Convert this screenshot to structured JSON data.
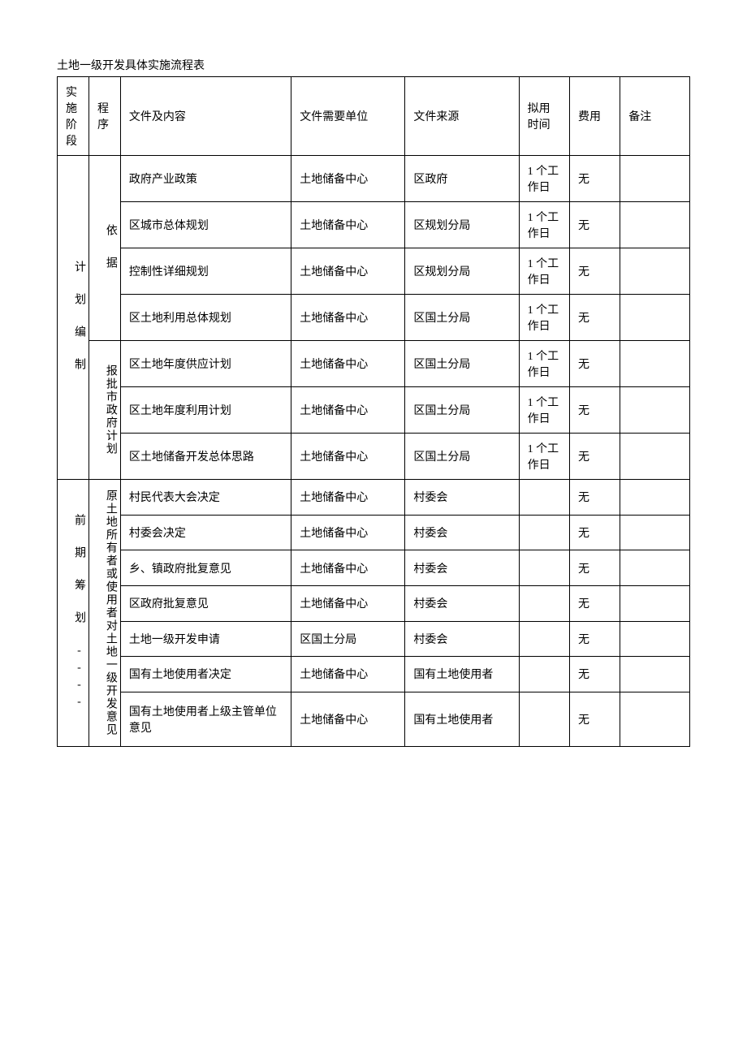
{
  "title": "土地一级开发具体实施流程表",
  "headers": {
    "stage": "实施阶段",
    "procedure": "程序",
    "doc": "文件及内容",
    "unit": "文件需要单位",
    "source": "文件来源",
    "time": "拟用时间",
    "fee": "费用",
    "note": "备注"
  },
  "stage1": {
    "label": "计　划　编　制",
    "proc1": "依　据",
    "proc2": "报批市政府计划",
    "rows": [
      {
        "doc": "政府产业政策",
        "unit": "土地储备中心",
        "src": "区政府",
        "time": "1 个工作日",
        "fee": "无",
        "note": ""
      },
      {
        "doc": "区城市总体规划",
        "unit": "土地储备中心",
        "src": "区规划分局",
        "time": "1 个工作日",
        "fee": "无",
        "note": ""
      },
      {
        "doc": "控制性详细规划",
        "unit": "土地储备中心",
        "src": "区规划分局",
        "time": "1 个工作日",
        "fee": "无",
        "note": ""
      },
      {
        "doc": "区土地利用总体规划",
        "unit": "土地储备中心",
        "src": "区国土分局",
        "time": "1 个工作日",
        "fee": "无",
        "note": ""
      },
      {
        "doc": "区土地年度供应计划",
        "unit": "土地储备中心",
        "src": "区国土分局",
        "time": "1 个工作日",
        "fee": "无",
        "note": ""
      },
      {
        "doc": "区土地年度利用计划",
        "unit": "土地储备中心",
        "src": "区国土分局",
        "time": "1 个工作日",
        "fee": "无",
        "note": ""
      },
      {
        "doc": "区土地储备开发总体思路",
        "unit": "土地储备中心",
        "src": "区国土分局",
        "time": "1 个工作日",
        "fee": "无",
        "note": ""
      }
    ]
  },
  "stage2": {
    "label": "前　期　筹　划 ----",
    "proc": "原土地所有者或使用者对土地一级开发意见",
    "rows": [
      {
        "doc": "村民代表大会决定",
        "unit": "土地储备中心",
        "src": "村委会",
        "time": "",
        "fee": "无",
        "note": ""
      },
      {
        "doc": "村委会决定",
        "unit": "土地储备中心",
        "src": "村委会",
        "time": "",
        "fee": "无",
        "note": ""
      },
      {
        "doc": "乡、镇政府批复意见",
        "unit": "土地储备中心",
        "src": "村委会",
        "time": "",
        "fee": "无",
        "note": ""
      },
      {
        "doc": "区政府批复意见",
        "unit": "土地储备中心",
        "src": "村委会",
        "time": "",
        "fee": "无",
        "note": ""
      },
      {
        "doc": "土地一级开发申请",
        "unit": "区国土分局",
        "src": "村委会",
        "time": "",
        "fee": "无",
        "note": ""
      },
      {
        "doc": "国有土地使用者决定",
        "unit": "土地储备中心",
        "src": "国有土地使用者",
        "time": "",
        "fee": "无",
        "note": ""
      },
      {
        "doc": "国有土地使用者上级主管单位意见",
        "unit": "土地储备中心",
        "src": "国有土地使用者",
        "time": "",
        "fee": "无",
        "note": ""
      }
    ]
  }
}
